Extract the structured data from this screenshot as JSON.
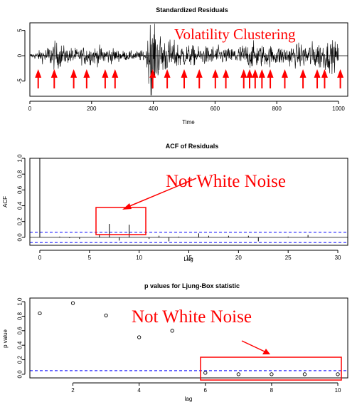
{
  "colors": {
    "annotation": "#ff0000",
    "reference": "#0000ff",
    "series": "#000000"
  },
  "chart_data": [
    {
      "type": "line",
      "title": "Standardized Residuals",
      "xlabel": "Time",
      "ylabel": "",
      "xlim": [
        0,
        1030
      ],
      "ylim": [
        -8,
        6.5
      ],
      "xticks": [
        0,
        200,
        400,
        600,
        800,
        1000
      ],
      "yticks": [
        -5,
        0,
        5
      ],
      "n": 1000,
      "envelope": [
        {
          "x": 0,
          "a": 0.3
        },
        {
          "x": 20,
          "a": 0.5
        },
        {
          "x": 40,
          "a": 0.9
        },
        {
          "x": 60,
          "a": 1.4
        },
        {
          "x": 80,
          "a": 1.9
        },
        {
          "x": 100,
          "a": 1.7
        },
        {
          "x": 120,
          "a": 1.0
        },
        {
          "x": 140,
          "a": 1.2
        },
        {
          "x": 160,
          "a": 0.9
        },
        {
          "x": 180,
          "a": 1.4
        },
        {
          "x": 200,
          "a": 1.2
        },
        {
          "x": 230,
          "a": 1.3
        },
        {
          "x": 260,
          "a": 1.1
        },
        {
          "x": 300,
          "a": 0.7
        },
        {
          "x": 340,
          "a": 0.6
        },
        {
          "x": 375,
          "a": 0.8
        },
        {
          "x": 383,
          "a": 2.5
        },
        {
          "x": 392,
          "a": 5.5
        },
        {
          "x": 400,
          "a": 4.5
        },
        {
          "x": 420,
          "a": 3.2
        },
        {
          "x": 450,
          "a": 2.2
        },
        {
          "x": 500,
          "a": 1.6
        },
        {
          "x": 550,
          "a": 1.2
        },
        {
          "x": 600,
          "a": 1.4
        },
        {
          "x": 640,
          "a": 1.0
        },
        {
          "x": 680,
          "a": 1.5
        },
        {
          "x": 720,
          "a": 1.8
        },
        {
          "x": 760,
          "a": 1.5
        },
        {
          "x": 800,
          "a": 1.3
        },
        {
          "x": 850,
          "a": 1.5
        },
        {
          "x": 900,
          "a": 1.8
        },
        {
          "x": 950,
          "a": 2.0
        },
        {
          "x": 980,
          "a": 2.1
        },
        {
          "x": 1000,
          "a": 1.6
        }
      ],
      "cluster_markers_x": [
        27,
        79,
        142,
        184,
        244,
        276,
        398,
        445,
        500,
        549,
        601,
        635,
        693,
        712,
        730,
        752,
        779,
        826,
        885,
        931,
        955,
        1006
      ],
      "annotation": "Volatility Clustering"
    },
    {
      "type": "bar",
      "title": "ACF of Residuals",
      "xlabel": "Lag",
      "ylabel": "ACF",
      "xlim": [
        -1,
        31
      ],
      "ylim": [
        -0.1,
        1.0
      ],
      "xticks": [
        0,
        5,
        10,
        15,
        20,
        25,
        30
      ],
      "yticks": [
        0.0,
        0.2,
        0.4,
        0.6,
        0.8,
        1.0
      ],
      "lags": [
        0,
        1,
        2,
        3,
        4,
        5,
        6,
        7,
        8,
        9,
        10,
        11,
        12,
        13,
        14,
        15,
        16,
        17,
        18,
        19,
        20,
        21,
        22,
        23,
        24,
        25,
        26,
        27,
        28,
        29,
        30
      ],
      "values": [
        1.0,
        0.0,
        0.01,
        -0.01,
        -0.02,
        0.0,
        0.03,
        0.17,
        -0.04,
        0.16,
        0.0,
        -0.02,
        0.02,
        -0.05,
        0.01,
        0.0,
        0.05,
        0.02,
        0.0,
        0.02,
        0.0,
        0.02,
        -0.05,
        0.0,
        0.0,
        0.01,
        0.0,
        0.03,
        0.0,
        0.0,
        0.0
      ],
      "conf_band": 0.065,
      "annotation": "Not White Noise"
    },
    {
      "type": "scatter",
      "title": "p values for Ljung-Box statistic",
      "xlabel": "lag",
      "ylabel": "p value",
      "xlim": [
        0.7,
        10.3
      ],
      "ylim": [
        -0.05,
        1.05
      ],
      "xticks": [
        2,
        4,
        6,
        8,
        10
      ],
      "yticks": [
        0.0,
        0.2,
        0.4,
        0.6,
        0.8,
        1.0
      ],
      "x": [
        1,
        2,
        3,
        4,
        5,
        6,
        7,
        8,
        9,
        10
      ],
      "y": [
        0.84,
        0.98,
        0.81,
        0.51,
        0.6,
        0.02,
        0.0,
        0.0,
        0.0,
        0.0
      ],
      "reference_line": 0.05,
      "annotation": "Not White Noise"
    }
  ]
}
